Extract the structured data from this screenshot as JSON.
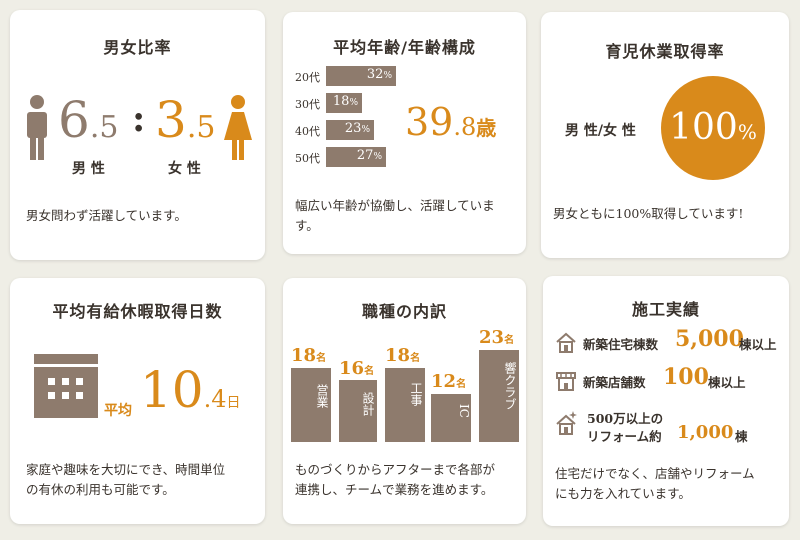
{
  "gender": {
    "title": "男女比率",
    "male_int": "6",
    "male_dec": ".5",
    "colon": ":",
    "female_int": "3",
    "female_dec": ".5",
    "male_label": "男 性",
    "female_label": "女 性",
    "desc": "男女問わず活躍しています。"
  },
  "age": {
    "title": "平均年齢/年齢構成",
    "rows": [
      {
        "label": "20代",
        "value": "32",
        "unit": "%",
        "pct": 32
      },
      {
        "label": "30代",
        "value": "18",
        "unit": "%",
        "pct": 18
      },
      {
        "label": "40代",
        "value": "23",
        "unit": "%",
        "pct": 23
      },
      {
        "label": "50代",
        "value": "27",
        "unit": "%",
        "pct": 27
      }
    ],
    "avg_int": "39",
    "avg_dec": ".8",
    "avg_unit": "歳",
    "desc": "幅広い年齢が協働し、活躍していま す。"
  },
  "leave": {
    "title": "育児休業取得率",
    "label": "男 性/女 性",
    "value": "100",
    "unit": "%",
    "desc": "男女ともに100%取得しています!"
  },
  "paid": {
    "title": "平均有給休暇取得日数",
    "prefix": "平均",
    "int": "10",
    "dec": ".4",
    "unit": "日",
    "desc1": "家庭や趣味を大切にでき、時間単位",
    "desc2": "の有休の利用も可能です。"
  },
  "jobs": {
    "title": "職種の内訳",
    "items": [
      {
        "name": "営業",
        "value": "18",
        "unit": "名"
      },
      {
        "name": "設計",
        "value": "16",
        "unit": "名"
      },
      {
        "name": "工事",
        "value": "18",
        "unit": "名"
      },
      {
        "name": "IC",
        "value": "12",
        "unit": "名"
      },
      {
        "name": "響クラブ",
        "value": "23",
        "unit": "名"
      }
    ],
    "desc1": "ものづくりからアフターまで各部が",
    "desc2": "連携し、チームで業務を進めます。"
  },
  "works": {
    "title": "施工実績",
    "rows": [
      {
        "icon": "house-icon",
        "label": "新築住宅棟数",
        "value": "5,000",
        "suffix": "棟以上"
      },
      {
        "icon": "shop-icon",
        "label": "新築店舗数",
        "value": "100",
        "suffix": "棟以上"
      },
      {
        "icon": "renovation-house-icon",
        "label1": "500万以上の",
        "label2": "リフォーム約",
        "value": "1,000",
        "suffix": "棟"
      }
    ],
    "desc1": "住宅だけでなく、店舗やリフォーム",
    "desc2": "にも力を入れています。"
  },
  "colors": {
    "accent": "#d98a1b",
    "brown": "#8e7b6d",
    "bg": "#efeee6"
  }
}
